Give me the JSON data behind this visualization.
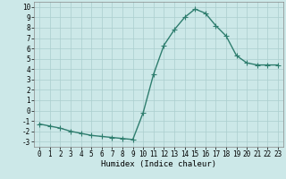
{
  "x": [
    0,
    1,
    2,
    3,
    4,
    5,
    6,
    7,
    8,
    9,
    10,
    11,
    12,
    13,
    14,
    15,
    16,
    17,
    18,
    19,
    20,
    21,
    22,
    23
  ],
  "y": [
    -1.3,
    -1.5,
    -1.7,
    -2.0,
    -2.2,
    -2.4,
    -2.5,
    -2.6,
    -2.7,
    -2.8,
    -0.2,
    3.5,
    6.3,
    7.8,
    9.0,
    9.8,
    9.4,
    8.2,
    7.2,
    5.3,
    4.6,
    4.4,
    4.4,
    4.4
  ],
  "line_color": "#2e7d6e",
  "bg_color": "#cce8e8",
  "grid_color": "#aacece",
  "xlabel": "Humidex (Indice chaleur)",
  "ylim": [
    -3.5,
    10.5
  ],
  "xlim": [
    -0.5,
    23.5
  ],
  "yticks": [
    -3,
    -2,
    -1,
    0,
    1,
    2,
    3,
    4,
    5,
    6,
    7,
    8,
    9,
    10
  ],
  "xticks": [
    0,
    1,
    2,
    3,
    4,
    5,
    6,
    7,
    8,
    9,
    10,
    11,
    12,
    13,
    14,
    15,
    16,
    17,
    18,
    19,
    20,
    21,
    22,
    23
  ],
  "tick_fontsize": 5.5,
  "xlabel_fontsize": 6.5,
  "marker_size": 2.0,
  "line_width": 1.0
}
